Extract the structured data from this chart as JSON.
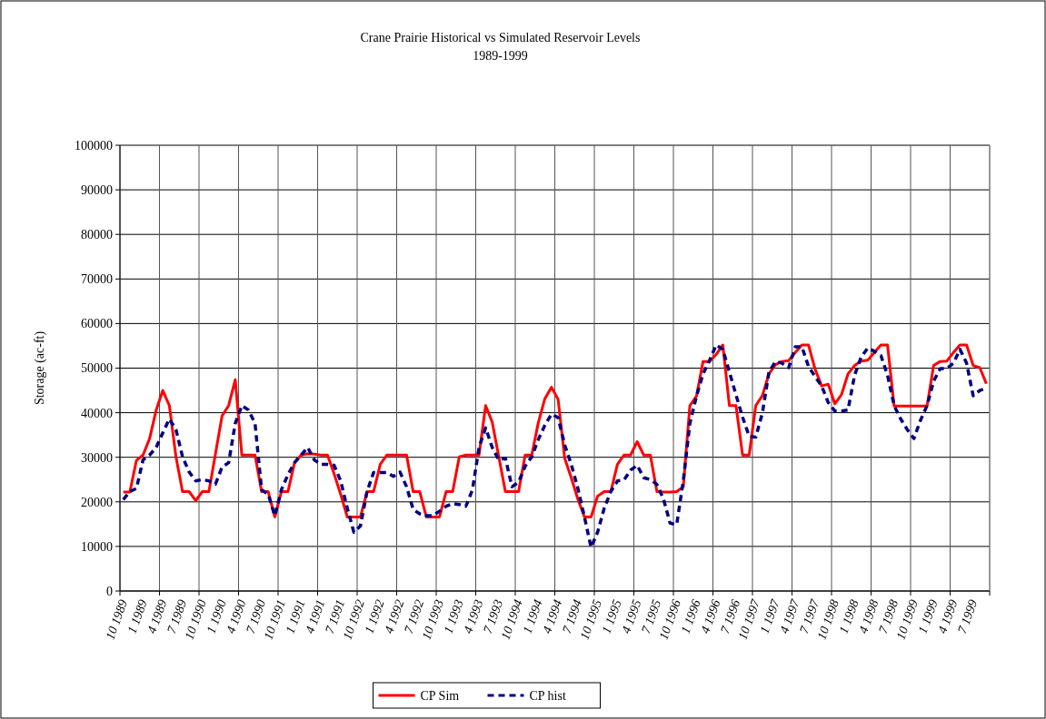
{
  "chart_data": {
    "type": "line",
    "title": "Crane Prairie Historical vs Simulated Reservoir Levels",
    "subtitle": "1989-1999",
    "ylabel": "Storage (ac-ft)",
    "categories": [
      "10 1989",
      null,
      null,
      "1 1989",
      null,
      null,
      "4 1989",
      null,
      null,
      "7 1989",
      null,
      null,
      "10 1990",
      null,
      null,
      "1 1990",
      null,
      null,
      "4 1990",
      null,
      null,
      "7 1990",
      null,
      null,
      "10 1991",
      null,
      null,
      "1 1991",
      null,
      null,
      "4 1991",
      null,
      null,
      "7 1991",
      null,
      null,
      "10 1992",
      null,
      null,
      "1 1992",
      null,
      null,
      "4 1992",
      null,
      null,
      "7 1992",
      null,
      null,
      "10 1993",
      null,
      null,
      "1 1993",
      null,
      null,
      "4 1993",
      null,
      null,
      "7 1993",
      null,
      null,
      "10 1994",
      null,
      null,
      "1 1994",
      null,
      null,
      "4 1994",
      null,
      null,
      "7 1994",
      null,
      null,
      "10 1995",
      null,
      null,
      "1 1995",
      null,
      null,
      "4 1995",
      null,
      null,
      "7 1995",
      null,
      null,
      "10 1996",
      null,
      null,
      "1 1996",
      null,
      null,
      "4 1996",
      null,
      null,
      "7 1996",
      null,
      null,
      "10 1997",
      null,
      null,
      "1 1997",
      null,
      null,
      "4 1997",
      null,
      null,
      "7 1997",
      null,
      null,
      "10 1998",
      null,
      null,
      "1 1998",
      null,
      null,
      "4 1998",
      null,
      null,
      "7 1998",
      null,
      null,
      "10 1999",
      null,
      null,
      "1 1999",
      null,
      null,
      "4 1999",
      null,
      null,
      "7 1999",
      null,
      null
    ],
    "series": [
      {
        "name": "CP Sim",
        "color": "#ff0000",
        "line_style": "solid",
        "values": [
          22200,
          22200,
          29300,
          30500,
          34200,
          40600,
          45000,
          41600,
          30100,
          22300,
          22300,
          20300,
          22300,
          22300,
          30800,
          39300,
          41600,
          47400,
          30500,
          30500,
          30500,
          22300,
          22300,
          16600,
          22300,
          22300,
          28800,
          30500,
          30800,
          30700,
          30500,
          30500,
          26300,
          21700,
          16600,
          16600,
          16600,
          22300,
          22300,
          28400,
          30500,
          30500,
          30500,
          30500,
          22300,
          22300,
          16600,
          16600,
          16600,
          22300,
          22300,
          30100,
          30500,
          30500,
          30500,
          41600,
          37900,
          30100,
          22300,
          22300,
          22300,
          30500,
          30500,
          37800,
          43200,
          45700,
          43000,
          29800,
          25400,
          20600,
          16600,
          16600,
          21300,
          22300,
          22300,
          28400,
          30500,
          30500,
          33500,
          30500,
          30500,
          22300,
          22200,
          22200,
          22300,
          23400,
          41600,
          43700,
          51500,
          51500,
          53100,
          55200,
          41600,
          41600,
          30500,
          30500,
          41600,
          43800,
          48700,
          50800,
          51500,
          51700,
          53500,
          55200,
          55200,
          49800,
          46000,
          46400,
          42000,
          44000,
          48700,
          50600,
          51600,
          51800,
          53500,
          55200,
          55200,
          41500,
          41500,
          41500,
          41500,
          41500,
          41500,
          50600,
          51500,
          51600,
          53500,
          55200,
          55200,
          50600,
          50100,
          46500
        ]
      },
      {
        "name": "CP hist",
        "color": "#000080",
        "line_style": "dashed",
        "values": [
          20500,
          22300,
          23000,
          29400,
          30500,
          32200,
          35500,
          38600,
          36200,
          30100,
          26700,
          24700,
          25000,
          24700,
          24000,
          27800,
          28800,
          37600,
          41600,
          40600,
          37600,
          22700,
          21700,
          16900,
          22700,
          26100,
          28800,
          30500,
          32200,
          29400,
          28400,
          28400,
          28200,
          24700,
          18600,
          13200,
          14600,
          22300,
          26600,
          26600,
          26600,
          25700,
          26700,
          23400,
          18300,
          17300,
          16900,
          16900,
          17900,
          19000,
          19600,
          19400,
          19000,
          22700,
          32200,
          36600,
          32200,
          29400,
          29800,
          23400,
          24400,
          28000,
          30100,
          34000,
          37200,
          39700,
          38900,
          32800,
          28400,
          23000,
          16600,
          9800,
          13200,
          18600,
          22300,
          24700,
          24900,
          27100,
          28200,
          25400,
          25000,
          23900,
          20600,
          15200,
          14900,
          24700,
          37600,
          43700,
          48700,
          51800,
          55200,
          54200,
          49100,
          44000,
          39000,
          34700,
          34500,
          39900,
          49100,
          51500,
          51100,
          50100,
          54800,
          54800,
          50400,
          48100,
          46000,
          42300,
          40400,
          40400,
          40600,
          48400,
          52500,
          54500,
          53800,
          52800,
          48400,
          41600,
          38600,
          36200,
          34200,
          38300,
          41600,
          47100,
          49900,
          49900,
          51100,
          54200,
          51100,
          43800,
          45000,
          45500
        ]
      }
    ],
    "ylim": [
      0,
      100000
    ],
    "yticks": [
      0,
      10000,
      20000,
      30000,
      40000,
      50000,
      60000,
      70000,
      80000,
      90000,
      100000
    ],
    "grid": true,
    "legend": "bottom"
  }
}
